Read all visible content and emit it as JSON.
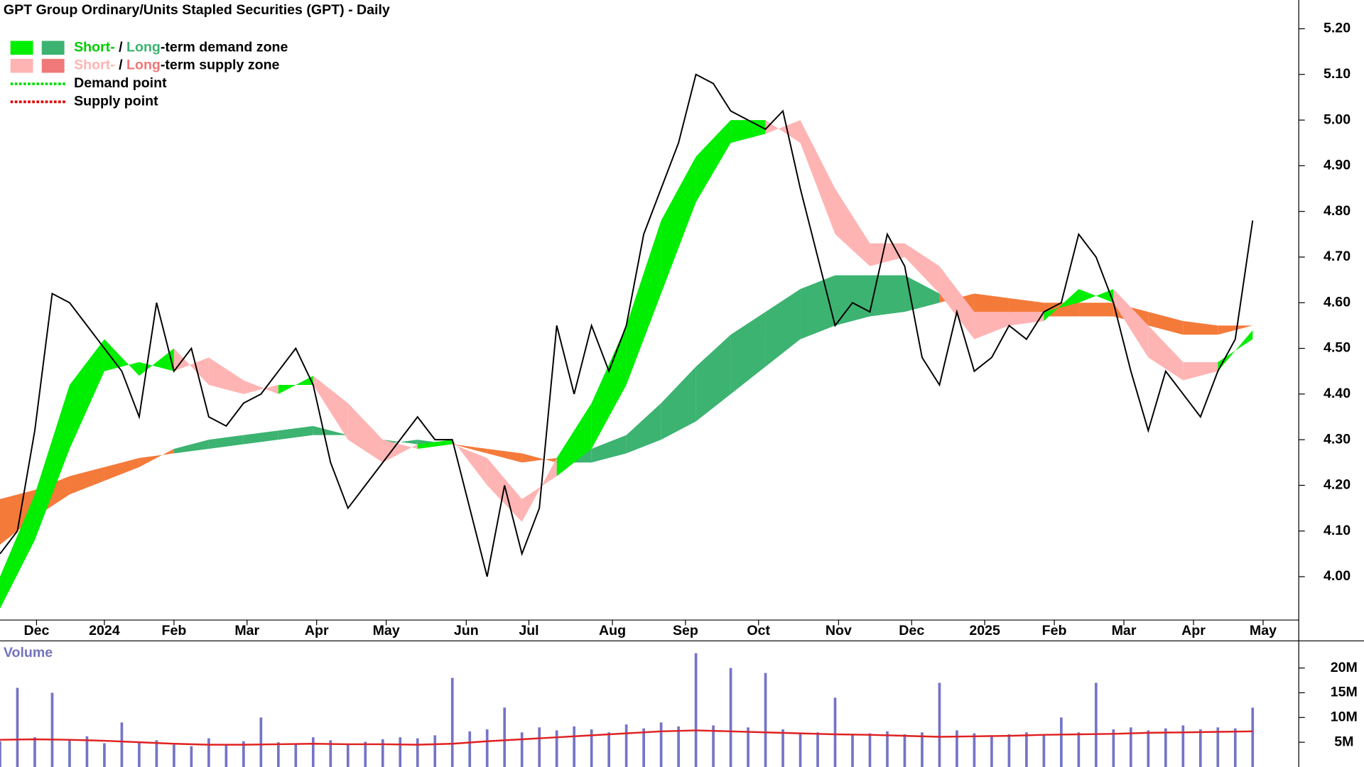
{
  "chart_data": [
    {
      "type": "line",
      "title": "GPT Group Ordinary/Units Stapled Securities (GPT) - Daily",
      "color": "#000000",
      "x": [
        0,
        5,
        10,
        15,
        20,
        25,
        30,
        35,
        40,
        45,
        50,
        55,
        60,
        65,
        70,
        75,
        80,
        85,
        90,
        95,
        100,
        105,
        110,
        115,
        120,
        125,
        130,
        135,
        140,
        145,
        150,
        155,
        160,
        165,
        170,
        175,
        180,
        185,
        190,
        195,
        200,
        205,
        210,
        215,
        220,
        225,
        230,
        235,
        240,
        245,
        250,
        255,
        260,
        265,
        270,
        275,
        280,
        285,
        290,
        295,
        300,
        305,
        310,
        315,
        320,
        325,
        330,
        335,
        340,
        345,
        350,
        355,
        360
      ],
      "values": [
        4.05,
        4.1,
        4.32,
        4.62,
        4.6,
        4.55,
        4.5,
        4.45,
        4.35,
        4.6,
        4.45,
        4.5,
        4.35,
        4.33,
        4.38,
        4.4,
        4.45,
        4.5,
        4.42,
        4.25,
        4.15,
        4.2,
        4.25,
        4.3,
        4.35,
        4.3,
        4.3,
        4.15,
        4.0,
        4.2,
        4.05,
        4.15,
        4.55,
        4.4,
        4.55,
        4.45,
        4.55,
        4.75,
        4.85,
        4.95,
        5.1,
        5.08,
        5.02,
        5.0,
        4.98,
        5.02,
        4.85,
        4.7,
        4.55,
        4.6,
        4.58,
        4.75,
        4.68,
        4.48,
        4.42,
        4.58,
        4.45,
        4.48,
        4.55,
        4.52,
        4.58,
        4.6,
        4.75,
        4.7,
        4.6,
        4.45,
        4.32,
        4.45,
        4.4,
        4.35,
        4.45,
        4.52,
        4.78
      ],
      "xlim": [
        0,
        373.25
      ],
      "xticks": [
        {
          "value": 10.5,
          "label": "Dec"
        },
        {
          "value": 30,
          "label": "2024"
        },
        {
          "value": 50,
          "label": "Feb"
        },
        {
          "value": 71,
          "label": "Mar"
        },
        {
          "value": 91,
          "label": "Apr"
        },
        {
          "value": 111,
          "label": "May"
        },
        {
          "value": 134,
          "label": "Jun"
        },
        {
          "value": 152,
          "label": "Jul"
        },
        {
          "value": 176,
          "label": "Aug"
        },
        {
          "value": 197,
          "label": "Sep"
        },
        {
          "value": 218,
          "label": "Oct"
        },
        {
          "value": 241,
          "label": "Nov"
        },
        {
          "value": 262,
          "label": "Dec"
        },
        {
          "value": 283,
          "label": "2025"
        },
        {
          "value": 303,
          "label": "Feb"
        },
        {
          "value": 323,
          "label": "Mar"
        },
        {
          "value": 343,
          "label": "Apr"
        },
        {
          "value": 363,
          "label": "May"
        }
      ],
      "ylim": [
        3.905,
        5.263
      ],
      "yticks": [
        {
          "value": 4,
          "label": "4.00"
        },
        {
          "value": 4.1,
          "label": "4.10"
        },
        {
          "value": 4.2,
          "label": "4.20"
        },
        {
          "value": 4.3,
          "label": "4.30"
        },
        {
          "value": 4.4,
          "label": "4.40"
        },
        {
          "value": 4.5,
          "label": "4.50"
        },
        {
          "value": 4.6,
          "label": "4.60"
        },
        {
          "value": 4.7,
          "label": "4.70"
        },
        {
          "value": 4.8,
          "label": "4.80"
        },
        {
          "value": 4.9,
          "label": "4.90"
        },
        {
          "value": 5,
          "label": "5.00"
        },
        {
          "value": 5.1,
          "label": "5.10"
        },
        {
          "value": 5.2,
          "label": "5.20"
        }
      ],
      "zones": [
        {
          "x": [
            0,
            10,
            20,
            30,
            40,
            50,
            60,
            70,
            80,
            90,
            100,
            110,
            120,
            130,
            140,
            150,
            160,
            170,
            180,
            190,
            200,
            210,
            220,
            230,
            240,
            250,
            260,
            270,
            280,
            290,
            300,
            310,
            320,
            330,
            340,
            350,
            360
          ],
          "fast": [
            4.07,
            4.13,
            4.18,
            4.21,
            4.24,
            4.28,
            4.3,
            4.31,
            4.32,
            4.33,
            4.31,
            4.29,
            4.3,
            4.29,
            4.27,
            4.25,
            4.26,
            4.28,
            4.31,
            4.38,
            4.46,
            4.53,
            4.58,
            4.63,
            4.66,
            4.66,
            4.66,
            4.62,
            4.58,
            4.57,
            4.57,
            4.57,
            4.57,
            4.55,
            4.53,
            4.53,
            4.55
          ],
          "slow": [
            4.17,
            4.19,
            4.22,
            4.24,
            4.26,
            4.27,
            4.28,
            4.29,
            4.3,
            4.31,
            4.31,
            4.3,
            4.29,
            4.29,
            4.28,
            4.27,
            4.25,
            4.25,
            4.27,
            4.3,
            4.34,
            4.4,
            4.46,
            4.52,
            4.55,
            4.57,
            4.58,
            4.6,
            4.62,
            4.61,
            4.6,
            4.6,
            4.6,
            4.58,
            4.56,
            4.55,
            4.55
          ],
          "demand_color": "#3cb371",
          "supply_color": "#f47a3a"
        },
        {
          "x": [
            0,
            10,
            20,
            30,
            40,
            50,
            60,
            70,
            80,
            90,
            100,
            110,
            120,
            130,
            140,
            150,
            160,
            170,
            180,
            190,
            200,
            210,
            220,
            230,
            240,
            250,
            260,
            270,
            280,
            290,
            300,
            310,
            320,
            330,
            340,
            350,
            360
          ],
          "fast": [
            4.0,
            4.18,
            4.42,
            4.52,
            4.44,
            4.5,
            4.42,
            4.4,
            4.42,
            4.42,
            4.3,
            4.25,
            4.29,
            4.3,
            4.2,
            4.12,
            4.26,
            4.38,
            4.55,
            4.78,
            4.92,
            5.0,
            5.0,
            4.95,
            4.75,
            4.68,
            4.7,
            4.62,
            4.52,
            4.55,
            4.56,
            4.63,
            4.6,
            4.48,
            4.43,
            4.45,
            4.54
          ],
          "slow": [
            3.93,
            4.08,
            4.28,
            4.45,
            4.47,
            4.45,
            4.48,
            4.43,
            4.4,
            4.44,
            4.38,
            4.3,
            4.28,
            4.29,
            4.26,
            4.17,
            4.22,
            4.28,
            4.42,
            4.62,
            4.82,
            4.95,
            4.97,
            5.0,
            4.85,
            4.73,
            4.73,
            4.68,
            4.58,
            4.58,
            4.58,
            4.6,
            4.63,
            4.55,
            4.47,
            4.47,
            4.52
          ],
          "demand_color": "#00ee00",
          "supply_color": "#ffb4b4"
        }
      ],
      "legend": [
        {
          "swatches": [
            "#00ee00",
            "#3cb371"
          ],
          "parts": [
            {
              "text": "Short-",
              "color": "#00cc00"
            },
            {
              "text": " / "
            },
            {
              "text": "Long",
              "color": "#3cb371"
            },
            {
              "text": "-term demand zone"
            }
          ]
        },
        {
          "swatches": [
            "#ffb4b4",
            "#f07878"
          ],
          "parts": [
            {
              "text": "Short-",
              "color": "#ffb4b4"
            },
            {
              "text": " / "
            },
            {
              "text": "Long",
              "color": "#f07878"
            },
            {
              "text": "-term supply zone"
            }
          ]
        },
        {
          "line": "#00dd00",
          "parts": [
            {
              "text": "Demand point"
            }
          ]
        },
        {
          "line": "#e00000",
          "parts": [
            {
              "text": "Supply point"
            }
          ]
        }
      ]
    },
    {
      "type": "bar",
      "title": "Volume",
      "color": "#7474c8",
      "x": [
        0,
        5,
        10,
        15,
        20,
        25,
        30,
        35,
        40,
        45,
        50,
        55,
        60,
        65,
        70,
        75,
        80,
        85,
        90,
        95,
        100,
        105,
        110,
        115,
        120,
        125,
        130,
        135,
        140,
        145,
        150,
        155,
        160,
        165,
        170,
        175,
        180,
        185,
        190,
        195,
        200,
        205,
        210,
        215,
        220,
        225,
        230,
        235,
        240,
        245,
        250,
        255,
        260,
        265,
        270,
        275,
        280,
        285,
        290,
        295,
        300,
        305,
        310,
        315,
        320,
        325,
        330,
        335,
        340,
        345,
        350,
        355,
        360
      ],
      "values": [
        5200000,
        16000000,
        6000000,
        15000000,
        5500000,
        6200000,
        4800000,
        9000000,
        5000000,
        5400000,
        4500000,
        4200000,
        5800000,
        4600000,
        5200000,
        10000000,
        5000000,
        4800000,
        6000000,
        5400000,
        4600000,
        5100000,
        5600000,
        6000000,
        5800000,
        6400000,
        18000000,
        7200000,
        7600000,
        12000000,
        7000000,
        8000000,
        7400000,
        8200000,
        7600000,
        7000000,
        8600000,
        7800000,
        9000000,
        8200000,
        23000000,
        8400000,
        20000000,
        8000000,
        19000000,
        7600000,
        6800000,
        7000000,
        14000000,
        6400000,
        6800000,
        7200000,
        6600000,
        7000000,
        17000000,
        7400000,
        6800000,
        6200000,
        6600000,
        7000000,
        6600000,
        10000000,
        7000000,
        17000000,
        7600000,
        8000000,
        7400000,
        7800000,
        8400000,
        7600000,
        8000000,
        7800000,
        12000000
      ],
      "average": {
        "color": "#e02020",
        "x": [
          0,
          10,
          20,
          30,
          40,
          50,
          60,
          70,
          80,
          90,
          100,
          110,
          120,
          130,
          140,
          150,
          160,
          170,
          180,
          190,
          200,
          210,
          220,
          230,
          240,
          250,
          260,
          270,
          280,
          290,
          300,
          310,
          320,
          330,
          340,
          350,
          360
        ],
        "values": [
          5500000,
          5600000,
          5500000,
          5300000,
          5000000,
          4700000,
          4500000,
          4500000,
          4600000,
          4700000,
          4600000,
          4600000,
          4500000,
          4700000,
          5200000,
          5600000,
          6000000,
          6400000,
          6800000,
          7200000,
          7400000,
          7200000,
          7000000,
          6800000,
          6600000,
          6500000,
          6300000,
          6100000,
          6200000,
          6300000,
          6500000,
          6600000,
          6700000,
          6900000,
          7000000,
          7100000,
          7200000
        ]
      },
      "xlim": [
        0,
        373.25
      ],
      "ylim": [
        0,
        25300000
      ],
      "yticks": [
        {
          "value": 5000000,
          "label": "5M"
        },
        {
          "value": 10000000,
          "label": "10M"
        },
        {
          "value": 15000000,
          "label": "15M"
        },
        {
          "value": 20000000,
          "label": "20M"
        }
      ]
    }
  ]
}
